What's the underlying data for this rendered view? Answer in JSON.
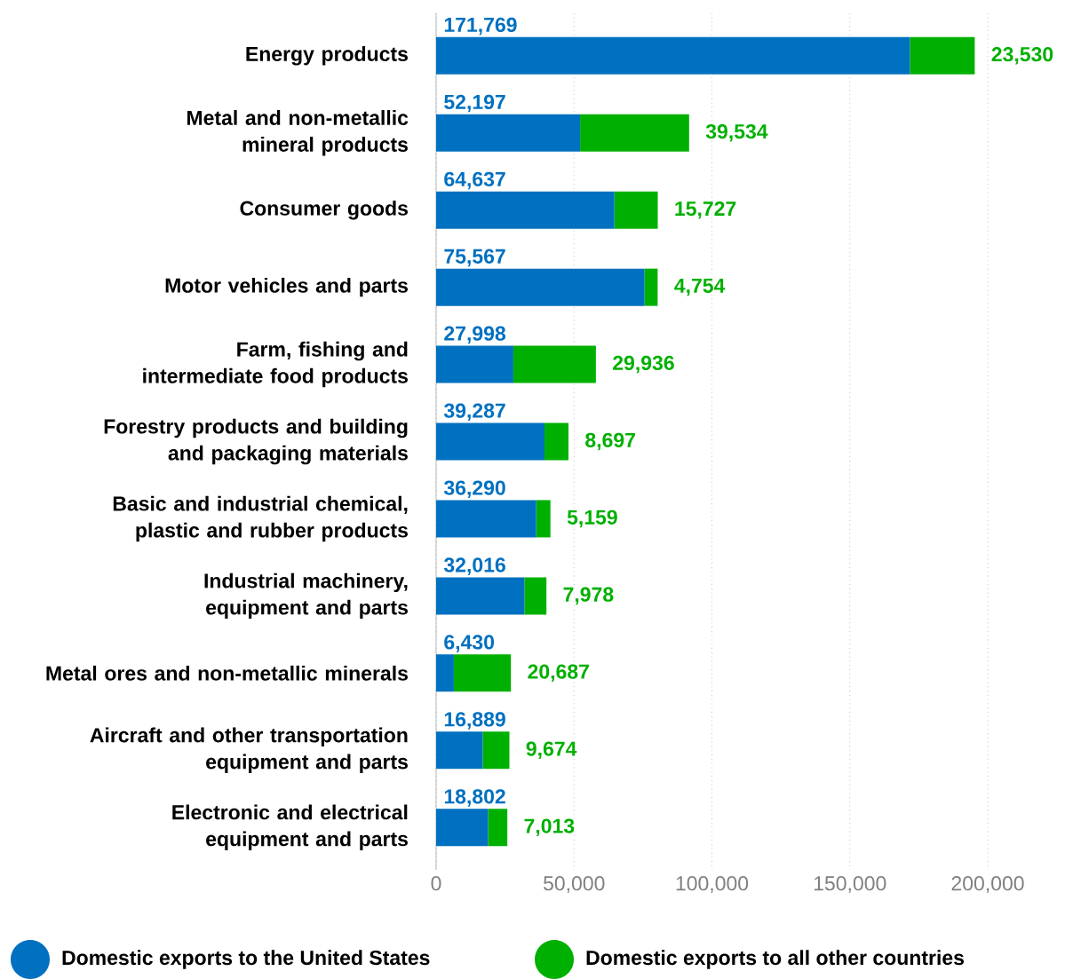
{
  "chart_data": {
    "type": "bar",
    "orientation": "horizontal",
    "stacked": true,
    "categories": [
      "Energy products",
      "Metal and non-metallic mineral products",
      "Consumer goods",
      "Motor vehicles and parts",
      "Farm, fishing and intermediate food products",
      "Forestry products and building and packaging materials",
      "Basic and industrial chemical, plastic and rubber products",
      "Industrial machinery, equipment and parts",
      "Metal ores and non-metallic minerals",
      "Aircraft and other transportation equipment and parts",
      "Electronic and electrical equipment and parts"
    ],
    "series": [
      {
        "name": "Domestic exports to the United States",
        "color": "#0070c0",
        "values": [
          171769,
          52197,
          64637,
          75567,
          27998,
          39287,
          36290,
          32016,
          6430,
          16889,
          18802
        ],
        "value_labels": [
          "171,769",
          "52,197",
          "64,637",
          "75,567",
          "27,998",
          "39,287",
          "36,290",
          "32,016",
          "6,430",
          "16,889",
          "18,802"
        ]
      },
      {
        "name": "Domestic exports to all other countries",
        "color": "#00b000",
        "values": [
          23530,
          39534,
          15727,
          4754,
          29936,
          8697,
          5159,
          7978,
          20687,
          9674,
          7013
        ],
        "value_labels": [
          "23,530",
          "39,534",
          "15,727",
          "4,754",
          "29,936",
          "8,697",
          "5,159",
          "7,978",
          "20,687",
          "9,674",
          "7,013"
        ]
      }
    ],
    "xlim": [
      0,
      200000
    ],
    "xticks": [
      0,
      {
        "value": 50000,
        "label": "50,000"
      },
      {
        "value": 100000,
        "label": "100,000"
      },
      {
        "value": 150000,
        "label": "150,000"
      },
      {
        "value": 200000,
        "label": "200,000"
      }
    ],
    "grid": "x",
    "legend": "bottom"
  }
}
